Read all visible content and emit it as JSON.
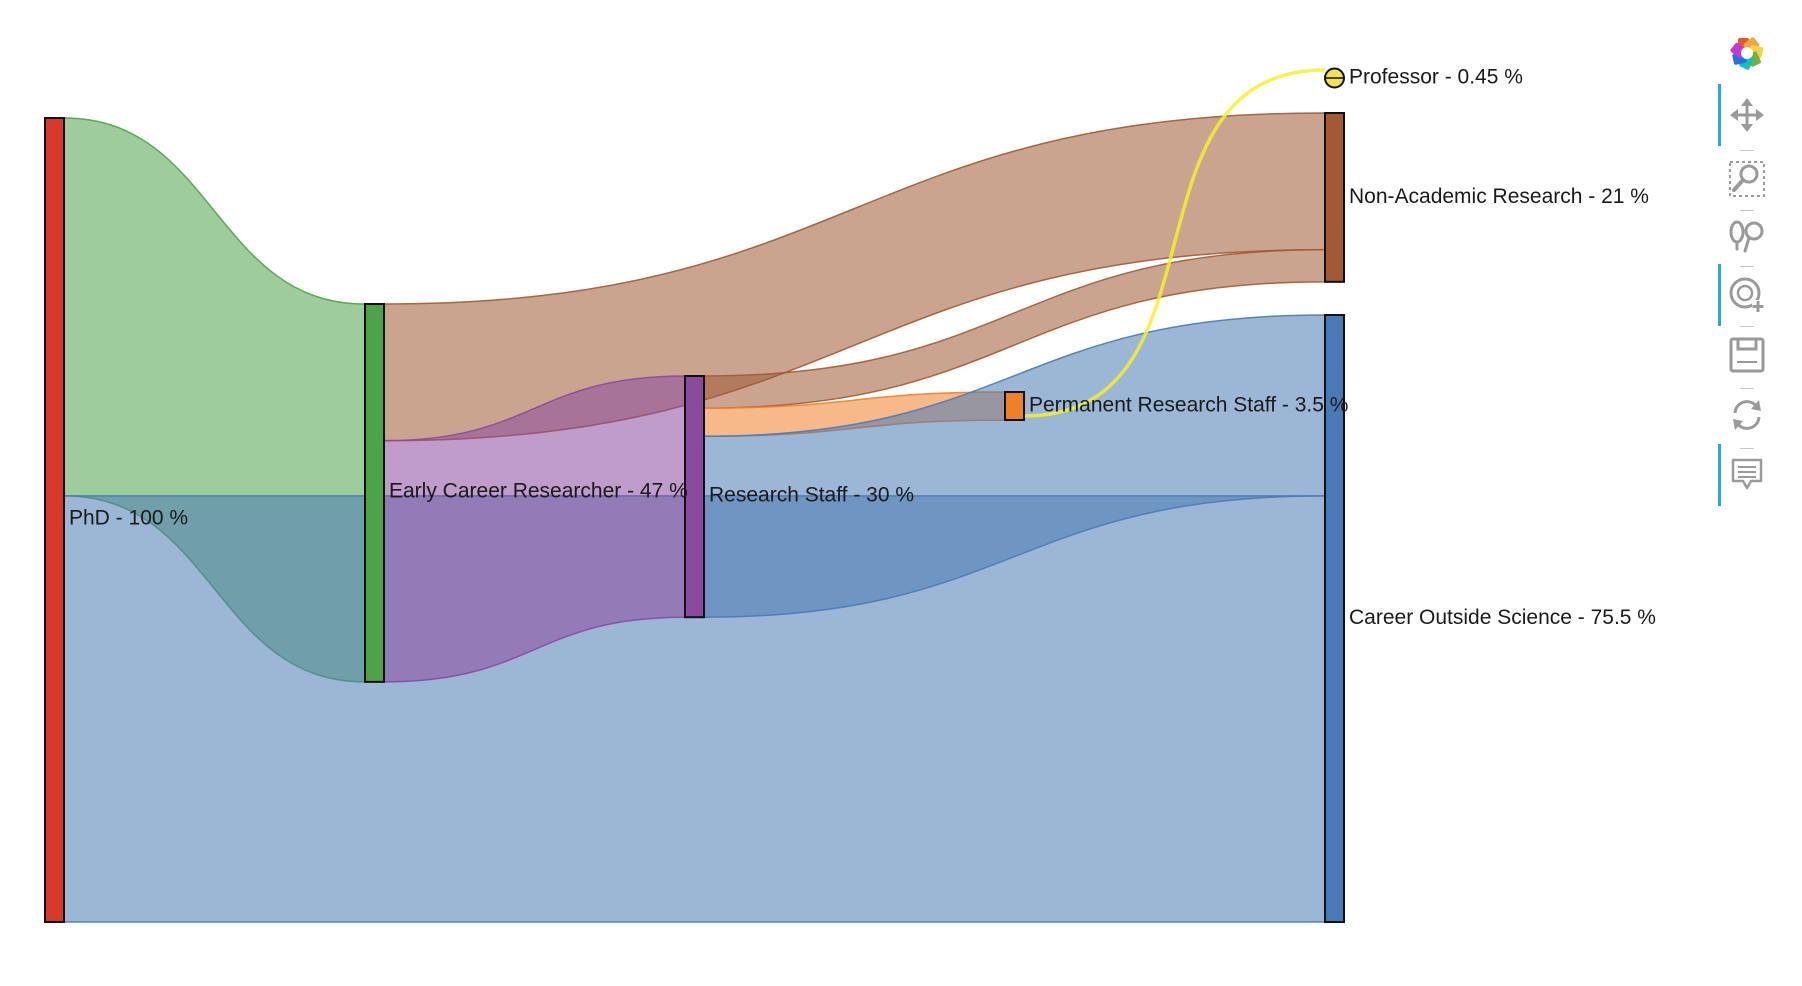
{
  "chart_data": {
    "type": "sankey",
    "title": "",
    "unit": "%",
    "nodes": [
      {
        "id": "phd",
        "label": "PhD - 100 %",
        "value": 100,
        "color": "#d73a2c"
      },
      {
        "id": "ecr",
        "label": "Early Career Researcher - 47 %",
        "value": 47,
        "color": "#4fa24a"
      },
      {
        "id": "rs",
        "label": "Research Staff - 30 %",
        "value": 30,
        "color": "#8a4a9e"
      },
      {
        "id": "prs",
        "label": "Permanent Research Staff - 3.5 %",
        "value": 3.5,
        "color": "#f07f2a"
      },
      {
        "id": "prof",
        "label": "Professor - 0.45 %",
        "value": 0.45,
        "color": "#f1e25a"
      },
      {
        "id": "nar",
        "label": "Non-Academic Research - 21 %",
        "value": 21,
        "color": "#a05a35"
      },
      {
        "id": "cos",
        "label": "Career Outside Science - 75.5 %",
        "value": 75.5,
        "color": "#4a7ab5"
      }
    ],
    "links": [
      {
        "source": "phd",
        "target": "ecr",
        "value": 47,
        "color": "#4fa24a"
      },
      {
        "source": "phd",
        "target": "cos",
        "value": 53,
        "color": "#4a7ab5"
      },
      {
        "source": "ecr",
        "target": "nar",
        "value": 17,
        "color": "#a05a35"
      },
      {
        "source": "ecr",
        "target": "rs",
        "value": 30,
        "color": "#8a4a9e"
      },
      {
        "source": "rs",
        "target": "nar",
        "value": 4,
        "color": "#a05a35"
      },
      {
        "source": "rs",
        "target": "prs",
        "value": 3.5,
        "color": "#f07f2a"
      },
      {
        "source": "rs",
        "target": "cos",
        "value": 22.5,
        "color": "#4a7ab5"
      },
      {
        "source": "prs",
        "target": "prof",
        "value": 0.45,
        "color": "#f5f030"
      }
    ]
  },
  "toolbar": {
    "tools": [
      {
        "icon": "bokeh-logo-icon",
        "active": false
      },
      {
        "icon": "pan-icon",
        "active": true
      },
      {
        "icon": "box-zoom-icon",
        "active": false
      },
      {
        "icon": "lasso-select-icon",
        "active": false
      },
      {
        "icon": "wheel-zoom-icon",
        "active": true
      },
      {
        "icon": "save-icon",
        "active": false
      },
      {
        "icon": "reset-icon",
        "active": false
      },
      {
        "icon": "hover-icon",
        "active": true
      }
    ]
  }
}
